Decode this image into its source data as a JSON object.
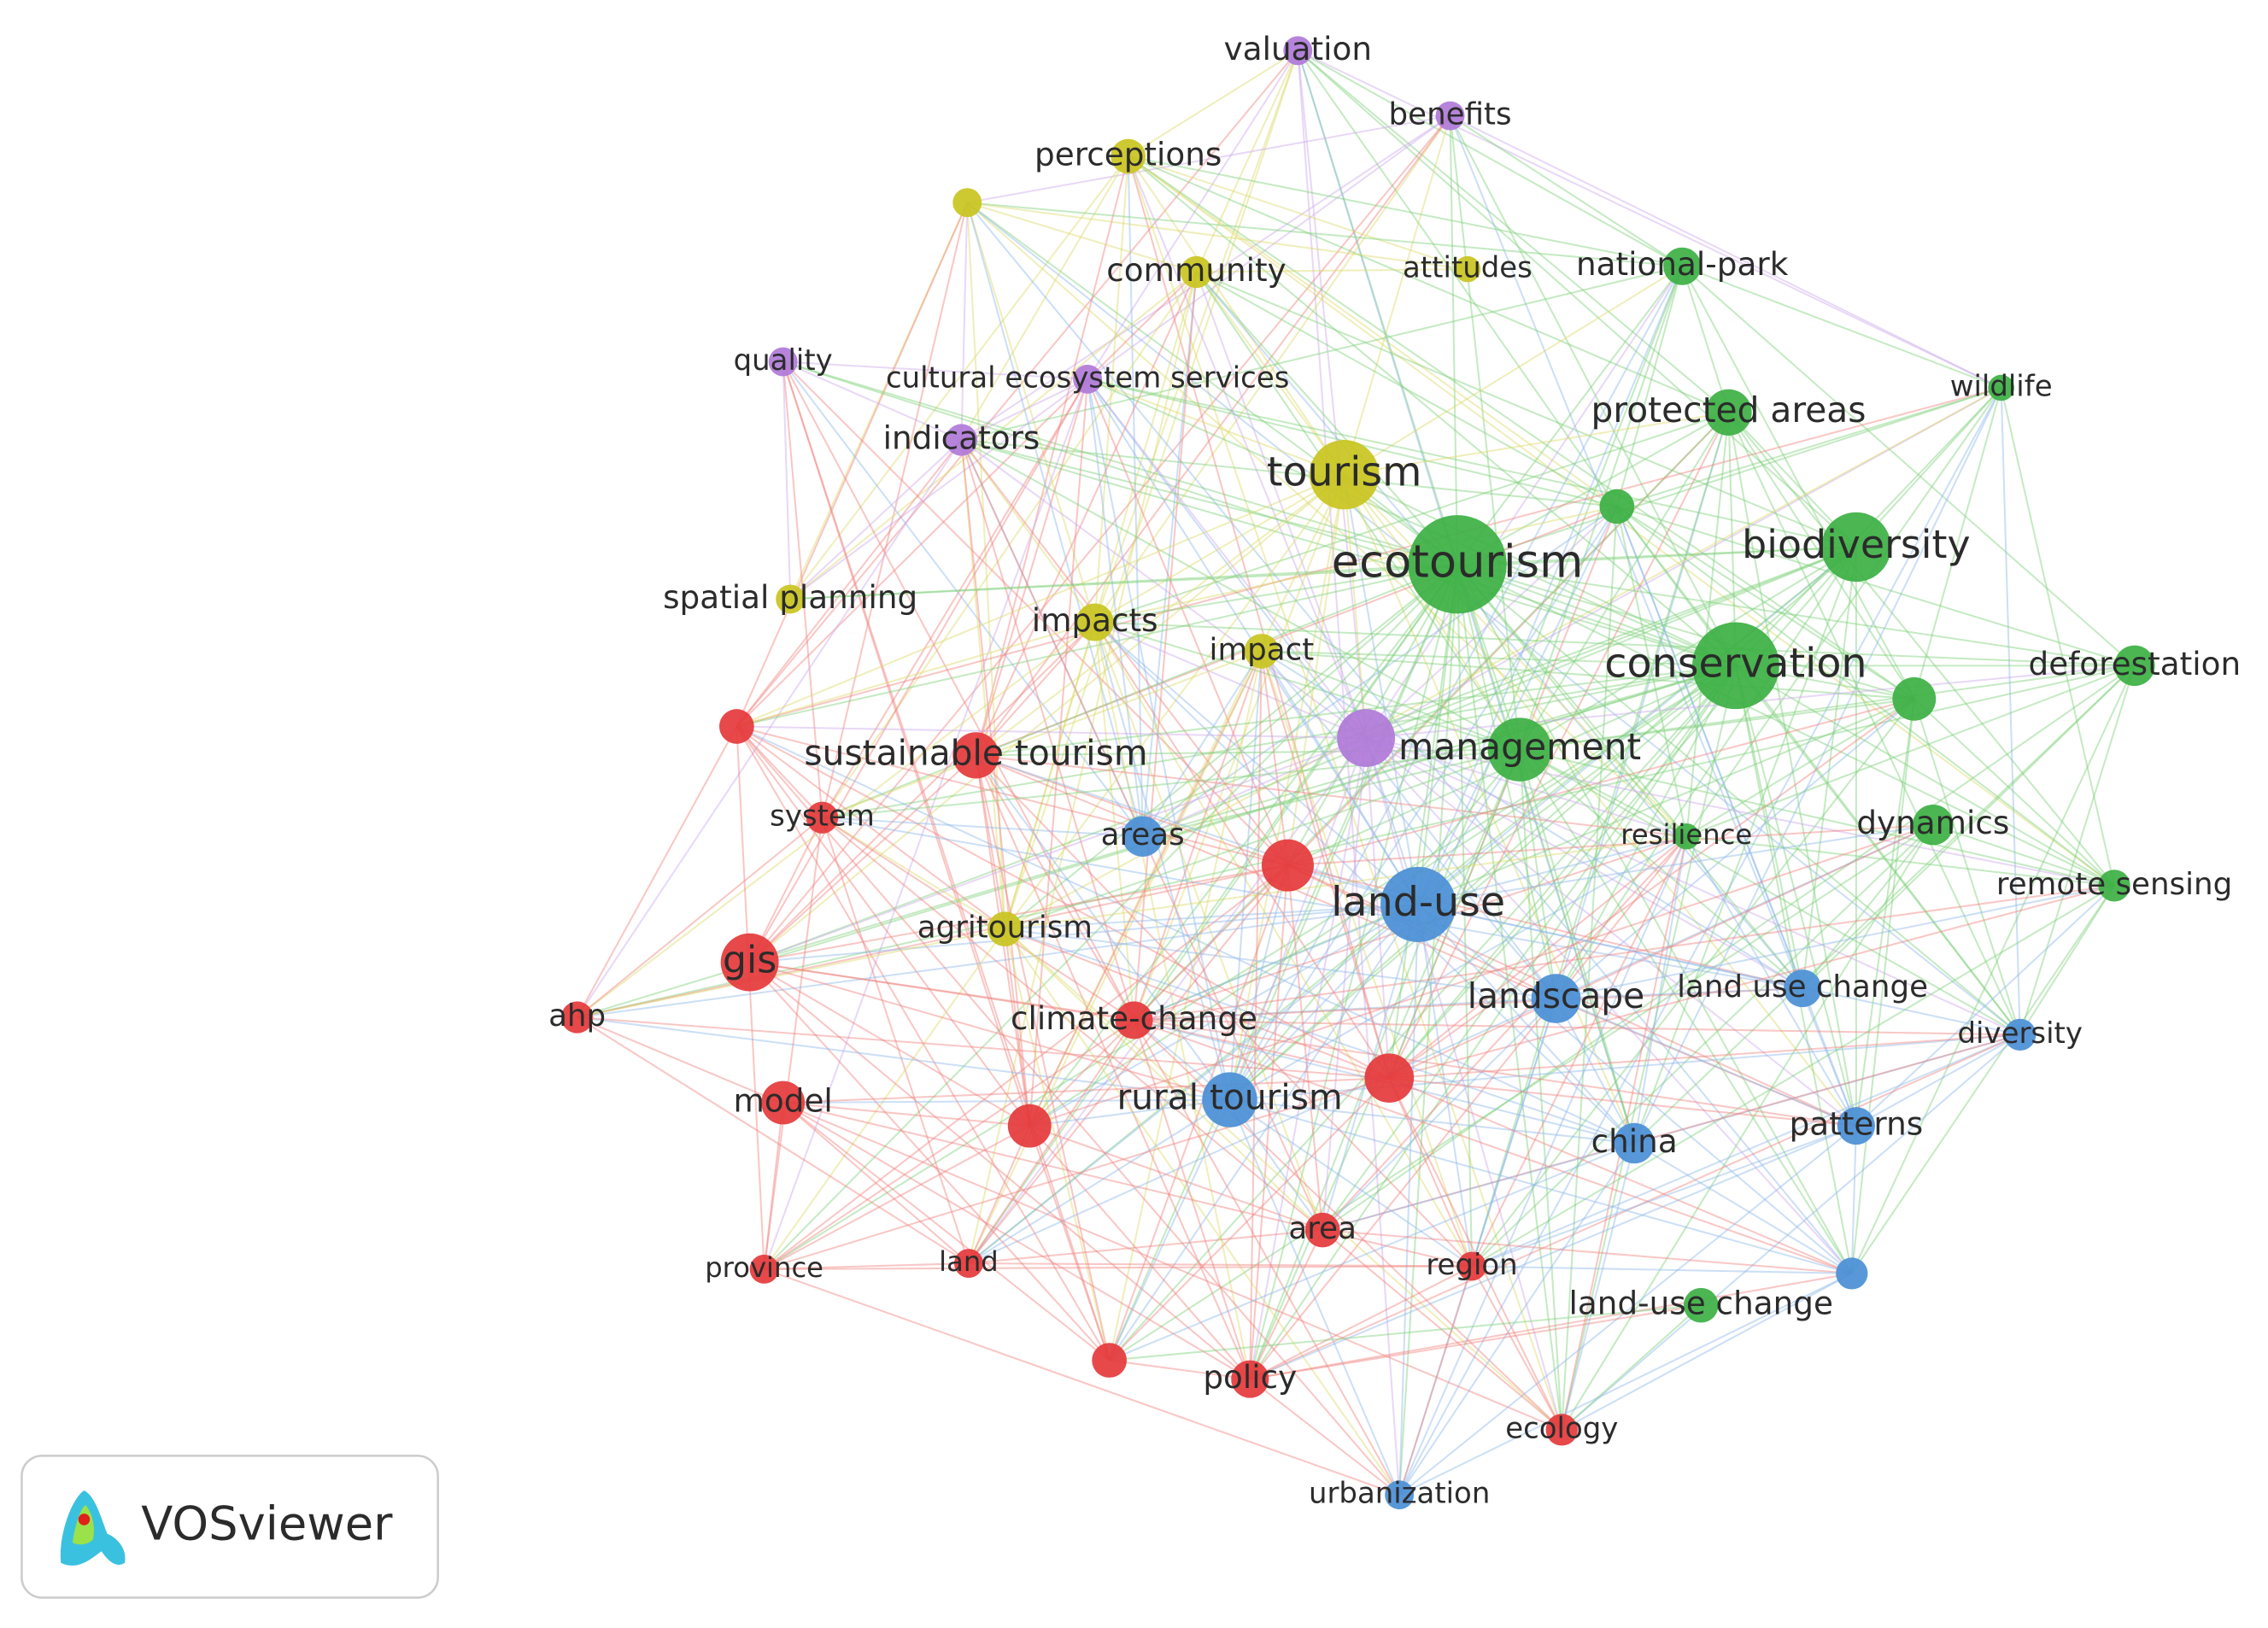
{
  "nodes": [
    {
      "label": "valuation"
    },
    {
      "label": "benefits"
    },
    {
      "label": "perceptions"
    },
    {
      "label": "community"
    },
    {
      "label": "attitudes"
    },
    {
      "label": "national-park"
    },
    {
      "label": "quality"
    },
    {
      "label": "cultural ecosystem services"
    },
    {
      "label": "indicators"
    },
    {
      "label": "protected areas"
    },
    {
      "label": "wildlife"
    },
    {
      "label": "tourism"
    },
    {
      "label": "ecotourism"
    },
    {
      "label": "biodiversity"
    },
    {
      "label": "spatial planning"
    },
    {
      "label": "impacts"
    },
    {
      "label": "impact"
    },
    {
      "label": "conservation"
    },
    {
      "label": "deforestation"
    },
    {
      "label": "sustainable tourism"
    },
    {
      "label": "management"
    },
    {
      "label": "system"
    },
    {
      "label": "areas"
    },
    {
      "label": "resilience"
    },
    {
      "label": "dynamics"
    },
    {
      "label": "land-use"
    },
    {
      "label": "remote sensing"
    },
    {
      "label": "agritourism"
    },
    {
      "label": "gis"
    },
    {
      "label": "ahp"
    },
    {
      "label": "climate-change"
    },
    {
      "label": "landscape"
    },
    {
      "label": "land use change"
    },
    {
      "label": "diversity"
    },
    {
      "label": "model"
    },
    {
      "label": "rural tourism"
    },
    {
      "label": "china"
    },
    {
      "label": "patterns"
    },
    {
      "label": "area"
    },
    {
      "label": "region"
    },
    {
      "label": "province"
    },
    {
      "label": "land"
    },
    {
      "label": "land-use change"
    },
    {
      "label": "policy"
    },
    {
      "label": "ecology"
    },
    {
      "label": "urbanization"
    }
  ],
  "logo": {
    "text": "VOSviewer"
  }
}
